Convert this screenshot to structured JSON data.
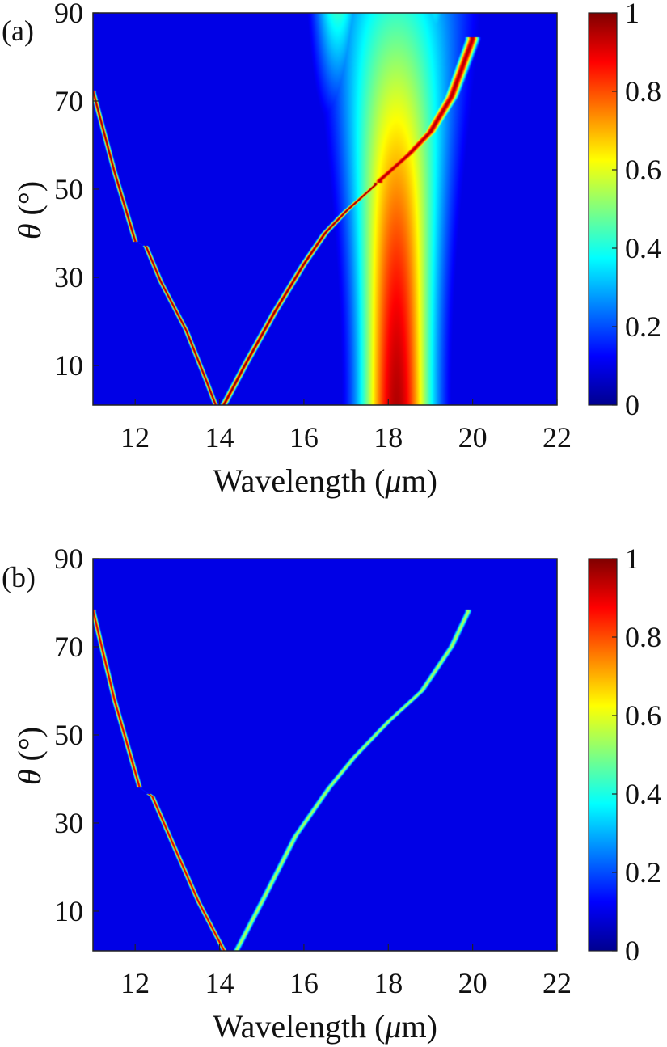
{
  "chart_data": [
    {
      "type": "heatmap",
      "panel_label": "(a)",
      "xlabel_prefix": "Wavelength (",
      "xlabel_mu": "μ",
      "xlabel_suffix": "m)",
      "ylabel_theta": "θ",
      "ylabel_rest": " (°)",
      "xlim": [
        11,
        22
      ],
      "ylim": [
        1,
        90
      ],
      "x_ticks": [
        12,
        14,
        16,
        18,
        20,
        22
      ],
      "y_ticks": [
        10,
        30,
        50,
        70,
        90
      ],
      "colorbar": {
        "range": [
          0,
          1
        ],
        "ticks": [
          "0",
          "0.2",
          "0.4",
          "0.6",
          "0.8",
          "1"
        ],
        "colormap": "jet"
      },
      "features": [
        {
          "name": "narrow branch left",
          "points": [
            [
              11.0,
              72
            ],
            [
              11.5,
              54
            ],
            [
              12.0,
              38
            ],
            [
              12.25,
              37
            ],
            [
              12.6,
              29
            ],
            [
              13.2,
              18
            ],
            [
              13.7,
              6
            ],
            [
              13.9,
              1
            ]
          ],
          "peak": 1.0,
          "width_um": 0.05,
          "gap_at": [
            12.0,
            12.2
          ]
        },
        {
          "name": "narrow branch right",
          "points": [
            [
              14.1,
              1
            ],
            [
              14.6,
              10
            ],
            [
              15.3,
              22
            ],
            [
              16.0,
              33
            ],
            [
              16.5,
              40
            ],
            [
              17.0,
              45
            ],
            [
              17.7,
              51
            ]
          ],
          "peak": 1.0,
          "width_um": 0.07
        },
        {
          "name": "upper dispersive branch",
          "points": [
            [
              17.8,
              52
            ],
            [
              18.5,
              58
            ],
            [
              19.0,
              63
            ],
            [
              19.5,
              71
            ],
            [
              20.0,
              84
            ]
          ],
          "peak": 0.95,
          "width_um": 0.14
        },
        {
          "name": "broad absorption band",
          "center_um": 18.2,
          "peak": 0.95,
          "width_um": 1.1,
          "theta_extent": [
            1,
            90
          ]
        }
      ]
    },
    {
      "type": "heatmap",
      "panel_label": "(b)",
      "xlabel_prefix": "Wavelength (",
      "xlabel_mu": "μ",
      "xlabel_suffix": "m)",
      "ylabel_theta": "θ",
      "ylabel_rest": " (°)",
      "xlim": [
        11,
        22
      ],
      "ylim": [
        1,
        90
      ],
      "x_ticks": [
        12,
        14,
        16,
        18,
        20,
        22
      ],
      "y_ticks": [
        10,
        30,
        50,
        70,
        90
      ],
      "colorbar": {
        "range": [
          0,
          1
        ],
        "ticks": [
          "0",
          "0.2",
          "0.4",
          "0.6",
          "0.8",
          "1"
        ],
        "colormap": "jet"
      },
      "features": [
        {
          "name": "narrow branch left",
          "points": [
            [
              11.0,
              78
            ],
            [
              11.5,
              58
            ],
            [
              12.1,
              38
            ],
            [
              12.4,
              36
            ],
            [
              12.9,
              25
            ],
            [
              13.5,
              12
            ],
            [
              14.1,
              1
            ]
          ],
          "peak": 0.95,
          "width_um": 0.05,
          "gap_at": [
            12.1,
            12.3
          ]
        },
        {
          "name": "narrow branch right",
          "points": [
            [
              14.4,
              1
            ],
            [
              15.0,
              12
            ],
            [
              15.8,
              27
            ],
            [
              16.6,
              38
            ],
            [
              17.2,
              45
            ],
            [
              18.0,
              53
            ],
            [
              18.8,
              60
            ],
            [
              19.5,
              70
            ],
            [
              19.9,
              78
            ]
          ],
          "peak": 0.55,
          "width_um": 0.07
        }
      ]
    }
  ]
}
